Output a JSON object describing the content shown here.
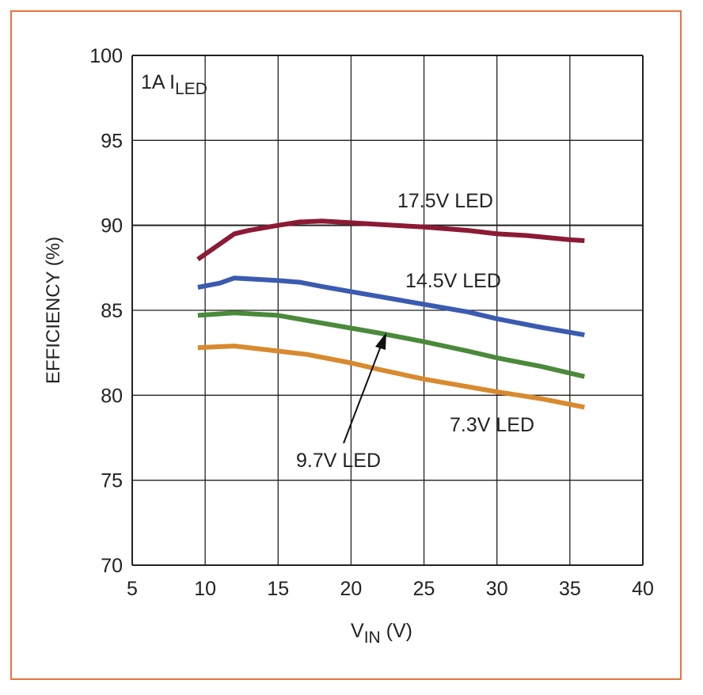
{
  "chart_data": {
    "type": "line",
    "annotation": {
      "main": "1A I",
      "subscript": "LED"
    },
    "xlabel": {
      "main": "V",
      "subscript": "IN",
      "suffix": " (V)"
    },
    "ylabel": "EFFICIENCY (%)",
    "xlim": [
      5,
      40
    ],
    "ylim": [
      70,
      100
    ],
    "xticks": [
      5,
      10,
      15,
      20,
      25,
      30,
      35,
      40
    ],
    "yticks": [
      70,
      75,
      80,
      85,
      90,
      95,
      100
    ],
    "grid": true,
    "colors": {
      "frame": "#e8733d",
      "grid": "#222222"
    },
    "series": [
      {
        "name": "17.5V LED",
        "color": "#8c1a35",
        "x": [
          9.5,
          12,
          13,
          15,
          16.5,
          18,
          20,
          22,
          25,
          28,
          30,
          32,
          35,
          36
        ],
        "y": [
          88.0,
          89.5,
          89.7,
          90.0,
          90.2,
          90.25,
          90.15,
          90.05,
          89.9,
          89.7,
          89.5,
          89.4,
          89.15,
          89.1
        ]
      },
      {
        "name": "14.5V LED",
        "color": "#3a5bb0",
        "x": [
          9.5,
          11,
          12,
          15,
          16.5,
          18,
          20,
          22,
          25,
          28,
          30,
          33,
          36
        ],
        "y": [
          86.35,
          86.6,
          86.9,
          86.75,
          86.65,
          86.4,
          86.1,
          85.8,
          85.35,
          84.9,
          84.5,
          84.0,
          83.55
        ]
      },
      {
        "name": "9.7V LED",
        "color": "#4a8a3a",
        "x": [
          9.5,
          12,
          15,
          17,
          20,
          22,
          25,
          28,
          30,
          33,
          36
        ],
        "y": [
          84.7,
          84.85,
          84.7,
          84.4,
          83.95,
          83.65,
          83.15,
          82.6,
          82.2,
          81.7,
          81.1
        ]
      },
      {
        "name": "7.3V LED",
        "color": "#d88a2e",
        "x": [
          9.5,
          12,
          15,
          17,
          20,
          22,
          25,
          28,
          30,
          33,
          36
        ],
        "y": [
          82.8,
          82.9,
          82.6,
          82.4,
          81.9,
          81.5,
          80.95,
          80.5,
          80.2,
          79.8,
          79.3
        ]
      }
    ]
  }
}
